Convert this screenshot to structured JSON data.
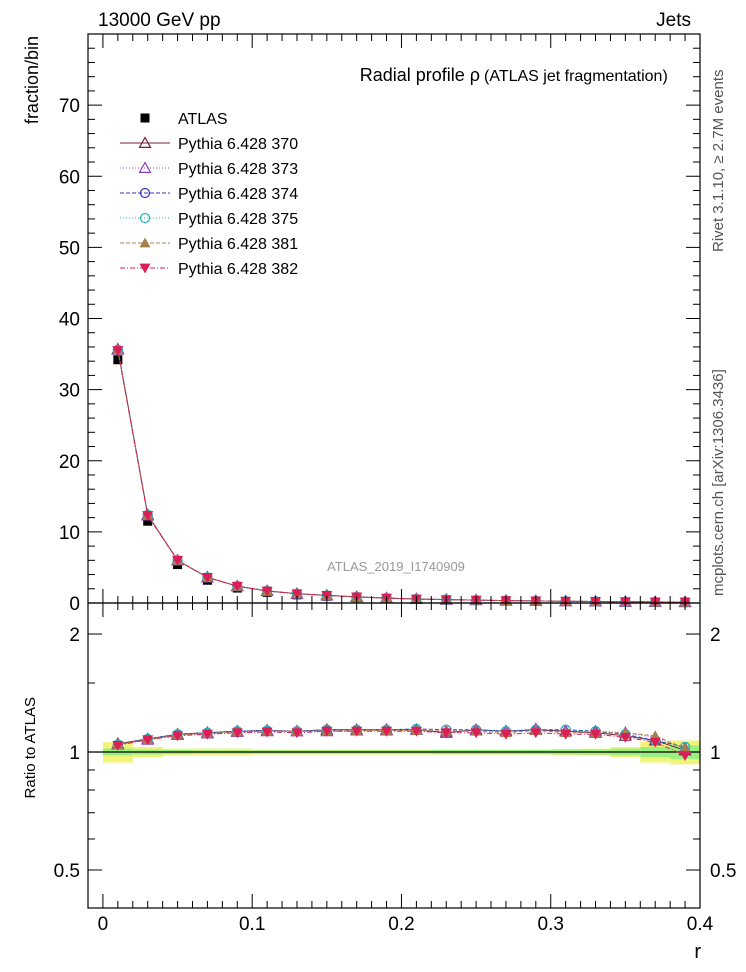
{
  "header": {
    "left": "13000 GeV pp",
    "right": "Jets"
  },
  "side_labels": {
    "rivet": "Rivet 3.1.10, ≥ 2.7M events",
    "mcplots": "mcplots.cern.ch [arXiv:1306.3436]"
  },
  "watermark": "ATLAS_2019_I1740909",
  "chart_data": [
    {
      "type": "line",
      "title_main": "Radial profile  ρ",
      "title_sub": "(ATLAS jet fragmentation)",
      "xlabel": "",
      "ylabel": "fraction/bin",
      "xlim": [
        -0.01,
        0.4
      ],
      "ylim": [
        0,
        80
      ],
      "yticks": [
        0,
        10,
        20,
        30,
        40,
        50,
        60,
        70
      ],
      "legend_position": "top-left",
      "x": [
        0.01,
        0.03,
        0.05,
        0.07,
        0.09,
        0.11,
        0.13,
        0.15,
        0.17,
        0.19,
        0.21,
        0.23,
        0.25,
        0.27,
        0.29,
        0.31,
        0.33,
        0.35,
        0.37,
        0.39
      ],
      "series": [
        {
          "name": "ATLAS",
          "color": "#000000",
          "marker": "square",
          "values": [
            34.2,
            11.5,
            5.4,
            3.2,
            2.1,
            1.5,
            1.15,
            0.95,
            0.75,
            0.6,
            0.5,
            0.42,
            0.36,
            0.3,
            0.26,
            0.22,
            0.19,
            0.16,
            0.14,
            0.12
          ]
        },
        {
          "name": "Pythia 6.428 370",
          "color": "#7a1f3d",
          "marker": "triangle-open",
          "dash": "",
          "values": [
            35.7,
            12.4,
            6.0,
            3.6,
            2.37,
            1.7,
            1.3,
            1.08,
            0.86,
            0.69,
            0.57,
            0.48,
            0.41,
            0.34,
            0.3,
            0.25,
            0.21,
            0.18,
            0.15,
            0.12
          ]
        },
        {
          "name": "Pythia 6.428 373",
          "color": "#8b3fbf",
          "marker": "triangle-open",
          "dash": "1,2",
          "values": [
            35.6,
            12.3,
            6.0,
            3.6,
            2.36,
            1.69,
            1.3,
            1.07,
            0.85,
            0.68,
            0.57,
            0.48,
            0.41,
            0.34,
            0.3,
            0.25,
            0.21,
            0.18,
            0.15,
            0.12
          ]
        },
        {
          "name": "Pythia 6.428 374",
          "color": "#3333bb",
          "marker": "circle-open",
          "dash": "4,2",
          "values": [
            35.6,
            12.4,
            6.0,
            3.6,
            2.37,
            1.7,
            1.3,
            1.08,
            0.86,
            0.69,
            0.57,
            0.48,
            0.41,
            0.34,
            0.3,
            0.25,
            0.21,
            0.18,
            0.15,
            0.12
          ]
        },
        {
          "name": "Pythia 6.428 375",
          "color": "#22bbbb",
          "marker": "circle-open",
          "dash": "1,2",
          "values": [
            35.6,
            12.4,
            6.0,
            3.6,
            2.37,
            1.7,
            1.3,
            1.08,
            0.86,
            0.69,
            0.57,
            0.48,
            0.41,
            0.34,
            0.3,
            0.25,
            0.21,
            0.18,
            0.15,
            0.12
          ]
        },
        {
          "name": "Pythia 6.428 381",
          "color": "#a8804a",
          "marker": "triangle-filled",
          "dash": "4,2",
          "values": [
            35.6,
            12.3,
            6.0,
            3.6,
            2.36,
            1.69,
            1.3,
            1.07,
            0.85,
            0.68,
            0.56,
            0.47,
            0.4,
            0.34,
            0.29,
            0.25,
            0.21,
            0.18,
            0.15,
            0.12
          ]
        },
        {
          "name": "Pythia 6.428 382",
          "color": "#dd1d55",
          "marker": "triangle-down-filled",
          "dash": "5,2,1,2",
          "values": [
            35.5,
            12.3,
            6.0,
            3.6,
            2.36,
            1.69,
            1.3,
            1.07,
            0.85,
            0.68,
            0.56,
            0.47,
            0.4,
            0.33,
            0.29,
            0.25,
            0.21,
            0.17,
            0.15,
            0.12
          ]
        }
      ]
    },
    {
      "type": "line",
      "xlabel": "r",
      "ylabel": "Ratio to ATLAS",
      "xlim": [
        -0.01,
        0.4
      ],
      "ylim": [
        0.4,
        2.4
      ],
      "yscale": "log",
      "yticks": [
        0.5,
        1,
        2
      ],
      "xticks": [
        0,
        0.1,
        0.2,
        0.3,
        0.4
      ],
      "band_inner": [
        0.02,
        0.015,
        0.012,
        0.01,
        0.01,
        0.01,
        0.01,
        0.01,
        0.01,
        0.01,
        0.01,
        0.012,
        0.012,
        0.012,
        0.013,
        0.014,
        0.015,
        0.02,
        0.03,
        0.04
      ],
      "band_outer": [
        0.06,
        0.03,
        0.02,
        0.02,
        0.02,
        0.015,
        0.015,
        0.015,
        0.015,
        0.015,
        0.015,
        0.015,
        0.015,
        0.015,
        0.015,
        0.018,
        0.02,
        0.03,
        0.06,
        0.07
      ],
      "x": [
        0.01,
        0.03,
        0.05,
        0.07,
        0.09,
        0.11,
        0.13,
        0.15,
        0.17,
        0.19,
        0.21,
        0.23,
        0.25,
        0.27,
        0.29,
        0.31,
        0.33,
        0.35,
        0.37,
        0.39
      ],
      "series": [
        {
          "name": "Pythia 6.428 370",
          "values": [
            1.05,
            1.08,
            1.11,
            1.12,
            1.13,
            1.135,
            1.13,
            1.14,
            1.14,
            1.14,
            1.14,
            1.12,
            1.14,
            1.13,
            1.14,
            1.13,
            1.12,
            1.1,
            1.07,
            1.01
          ]
        },
        {
          "name": "Pythia 6.428 373",
          "values": [
            1.045,
            1.075,
            1.105,
            1.115,
            1.125,
            1.13,
            1.13,
            1.13,
            1.135,
            1.135,
            1.14,
            1.13,
            1.135,
            1.13,
            1.145,
            1.13,
            1.13,
            1.12,
            1.09,
            1.02
          ]
        },
        {
          "name": "Pythia 6.428 374",
          "values": [
            1.045,
            1.08,
            1.11,
            1.12,
            1.13,
            1.135,
            1.13,
            1.14,
            1.14,
            1.14,
            1.145,
            1.14,
            1.14,
            1.13,
            1.14,
            1.14,
            1.13,
            1.11,
            1.07,
            1.03
          ]
        },
        {
          "name": "Pythia 6.428 375",
          "values": [
            1.045,
            1.08,
            1.11,
            1.12,
            1.13,
            1.135,
            1.13,
            1.14,
            1.14,
            1.14,
            1.145,
            1.14,
            1.14,
            1.13,
            1.14,
            1.14,
            1.13,
            1.11,
            1.07,
            1.03
          ]
        },
        {
          "name": "Pythia 6.428 381",
          "values": [
            1.045,
            1.075,
            1.105,
            1.115,
            1.125,
            1.13,
            1.13,
            1.13,
            1.135,
            1.135,
            1.135,
            1.13,
            1.13,
            1.12,
            1.135,
            1.12,
            1.12,
            1.12,
            1.1,
            1.02
          ]
        },
        {
          "name": "Pythia 6.428 382",
          "values": [
            1.04,
            1.075,
            1.1,
            1.11,
            1.12,
            1.125,
            1.12,
            1.13,
            1.13,
            1.13,
            1.13,
            1.12,
            1.12,
            1.11,
            1.12,
            1.11,
            1.11,
            1.09,
            1.06,
            0.98
          ]
        }
      ]
    }
  ]
}
